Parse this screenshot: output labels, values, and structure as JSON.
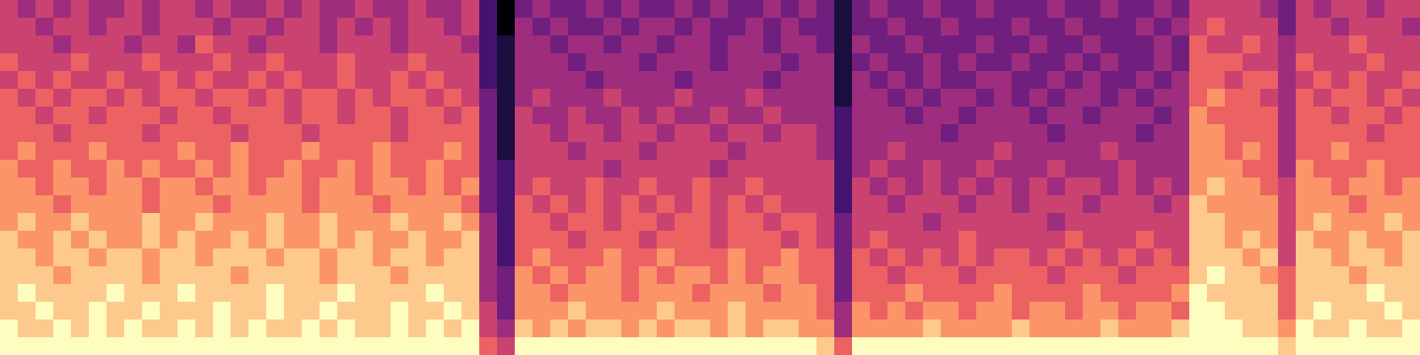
{
  "chart_data": {
    "type": "heatmap",
    "color": "magma",
    "tick_labels": false,
    "zlim": [
      0,
      9
    ],
    "cells": [
      [
        5,
        4,
        5,
        4,
        5,
        4,
        4,
        5,
        4,
        5,
        5,
        4,
        5,
        4,
        4,
        5,
        4,
        5,
        4,
        4,
        5,
        4,
        4,
        5,
        4,
        4,
        5,
        2,
        0,
        3,
        4,
        3,
        3,
        4,
        3,
        4,
        3,
        3,
        4,
        3,
        4,
        3,
        3,
        4,
        3,
        4,
        3,
        1,
        3,
        4,
        3,
        3,
        4,
        3,
        3,
        4,
        3,
        3,
        3,
        4,
        3,
        3,
        4,
        3,
        3,
        4,
        3,
        5,
        5,
        5,
        5,
        4,
        3,
        5,
        4,
        5,
        5,
        4,
        5,
        5
      ],
      [
        5,
        5,
        4,
        5,
        5,
        4,
        5,
        5,
        4,
        5,
        5,
        5,
        4,
        5,
        5,
        4,
        5,
        5,
        4,
        5,
        4,
        5,
        4,
        5,
        5,
        4,
        5,
        2,
        0,
        4,
        3,
        4,
        3,
        3,
        4,
        3,
        4,
        4,
        3,
        4,
        3,
        3,
        4,
        3,
        4,
        3,
        3,
        1,
        3,
        3,
        4,
        3,
        3,
        4,
        3,
        3,
        3,
        4,
        3,
        3,
        4,
        3,
        3,
        3,
        4,
        3,
        4,
        5,
        6,
        5,
        5,
        5,
        3,
        5,
        5,
        4,
        5,
        5,
        5,
        4
      ],
      [
        5,
        5,
        5,
        4,
        5,
        5,
        5,
        4,
        5,
        5,
        4,
        6,
        5,
        5,
        4,
        5,
        5,
        5,
        4,
        5,
        5,
        5,
        4,
        5,
        5,
        5,
        4,
        2,
        1,
        4,
        4,
        3,
        4,
        4,
        3,
        4,
        4,
        3,
        4,
        4,
        3,
        4,
        4,
        3,
        4,
        4,
        3,
        1,
        4,
        3,
        3,
        4,
        3,
        3,
        3,
        4,
        3,
        3,
        4,
        3,
        3,
        4,
        3,
        3,
        3,
        4,
        3,
        6,
        5,
        5,
        6,
        5,
        4,
        5,
        5,
        5,
        6,
        5,
        5,
        5
      ],
      [
        6,
        5,
        5,
        5,
        6,
        5,
        5,
        5,
        6,
        5,
        5,
        5,
        6,
        5,
        5,
        6,
        5,
        5,
        5,
        6,
        5,
        5,
        5,
        6,
        5,
        5,
        5,
        2,
        1,
        4,
        4,
        4,
        3,
        4,
        4,
        4,
        3,
        4,
        4,
        4,
        3,
        4,
        4,
        4,
        3,
        4,
        4,
        1,
        3,
        4,
        3,
        3,
        4,
        3,
        4,
        3,
        3,
        4,
        3,
        3,
        4,
        3,
        4,
        3,
        3,
        4,
        3,
        6,
        6,
        6,
        5,
        5,
        4,
        6,
        5,
        5,
        5,
        6,
        5,
        5
      ],
      [
        5,
        6,
        5,
        6,
        5,
        5,
        6,
        5,
        5,
        6,
        5,
        6,
        5,
        5,
        6,
        5,
        6,
        5,
        5,
        6,
        5,
        5,
        6,
        5,
        6,
        5,
        5,
        2,
        1,
        4,
        4,
        4,
        4,
        3,
        4,
        4,
        4,
        4,
        3,
        4,
        4,
        4,
        4,
        3,
        4,
        4,
        4,
        1,
        4,
        3,
        4,
        3,
        4,
        3,
        3,
        4,
        4,
        3,
        3,
        4,
        3,
        4,
        3,
        3,
        4,
        3,
        4,
        6,
        6,
        5,
        6,
        6,
        4,
        5,
        6,
        5,
        6,
        5,
        5,
        6
      ],
      [
        6,
        5,
        6,
        5,
        6,
        6,
        5,
        6,
        5,
        6,
        6,
        5,
        6,
        6,
        5,
        6,
        5,
        6,
        6,
        5,
        6,
        5,
        6,
        6,
        5,
        6,
        5,
        3,
        1,
        4,
        5,
        4,
        4,
        4,
        5,
        4,
        4,
        4,
        5,
        4,
        4,
        4,
        5,
        4,
        4,
        4,
        4,
        1,
        4,
        4,
        3,
        4,
        3,
        4,
        4,
        3,
        4,
        3,
        4,
        3,
        4,
        4,
        3,
        4,
        3,
        4,
        4,
        6,
        7,
        6,
        6,
        5,
        4,
        6,
        5,
        6,
        6,
        5,
        6,
        5
      ],
      [
        6,
        6,
        5,
        6,
        6,
        5,
        6,
        6,
        6,
        5,
        6,
        6,
        5,
        6,
        6,
        6,
        5,
        6,
        6,
        5,
        6,
        6,
        5,
        6,
        6,
        5,
        6,
        3,
        1,
        5,
        4,
        4,
        5,
        4,
        4,
        5,
        4,
        5,
        4,
        4,
        5,
        4,
        4,
        5,
        4,
        4,
        4,
        2,
        4,
        4,
        4,
        3,
        4,
        4,
        3,
        4,
        4,
        4,
        3,
        4,
        4,
        3,
        4,
        4,
        4,
        3,
        4,
        7,
        6,
        6,
        6,
        6,
        4,
        6,
        6,
        5,
        6,
        6,
        5,
        6
      ],
      [
        6,
        6,
        6,
        5,
        6,
        6,
        6,
        6,
        5,
        6,
        6,
        6,
        6,
        5,
        6,
        6,
        6,
        5,
        6,
        6,
        6,
        6,
        5,
        6,
        6,
        6,
        6,
        3,
        1,
        5,
        5,
        4,
        5,
        5,
        4,
        5,
        5,
        4,
        5,
        5,
        4,
        5,
        5,
        4,
        5,
        5,
        4,
        2,
        4,
        4,
        4,
        4,
        4,
        3,
        4,
        4,
        4,
        4,
        4,
        3,
        4,
        4,
        4,
        4,
        3,
        4,
        4,
        7,
        7,
        6,
        6,
        6,
        4,
        6,
        6,
        6,
        6,
        5,
        6,
        6
      ],
      [
        6,
        7,
        6,
        6,
        6,
        7,
        6,
        6,
        6,
        6,
        7,
        6,
        6,
        7,
        6,
        6,
        6,
        7,
        6,
        6,
        6,
        7,
        6,
        6,
        6,
        7,
        6,
        3,
        1,
        5,
        5,
        5,
        4,
        5,
        5,
        5,
        4,
        5,
        5,
        5,
        5,
        4,
        5,
        5,
        5,
        5,
        4,
        2,
        4,
        4,
        5,
        4,
        4,
        4,
        4,
        4,
        5,
        4,
        4,
        4,
        4,
        4,
        5,
        4,
        4,
        4,
        4,
        7,
        7,
        6,
        7,
        6,
        4,
        6,
        6,
        7,
        6,
        6,
        6,
        6
      ],
      [
        7,
        6,
        6,
        7,
        6,
        6,
        7,
        6,
        7,
        6,
        6,
        7,
        6,
        7,
        6,
        6,
        7,
        6,
        6,
        7,
        6,
        7,
        6,
        6,
        7,
        6,
        6,
        3,
        2,
        5,
        5,
        5,
        5,
        5,
        4,
        5,
        5,
        5,
        5,
        5,
        4,
        5,
        5,
        5,
        5,
        5,
        5,
        2,
        4,
        5,
        4,
        4,
        5,
        4,
        4,
        5,
        4,
        4,
        4,
        5,
        4,
        4,
        4,
        5,
        4,
        4,
        4,
        7,
        7,
        7,
        6,
        6,
        4,
        7,
        6,
        6,
        6,
        7,
        6,
        6
      ],
      [
        7,
        7,
        6,
        7,
        7,
        6,
        7,
        7,
        6,
        7,
        7,
        6,
        7,
        7,
        6,
        7,
        7,
        6,
        7,
        7,
        6,
        7,
        7,
        6,
        7,
        6,
        7,
        3,
        2,
        5,
        6,
        5,
        5,
        6,
        5,
        5,
        6,
        5,
        5,
        6,
        5,
        5,
        6,
        5,
        5,
        5,
        5,
        2,
        5,
        4,
        5,
        4,
        5,
        4,
        5,
        4,
        5,
        4,
        5,
        4,
        5,
        5,
        4,
        5,
        4,
        5,
        4,
        7,
        8,
        7,
        7,
        6,
        5,
        7,
        7,
        6,
        7,
        7,
        6,
        7
      ],
      [
        7,
        7,
        7,
        6,
        7,
        7,
        7,
        7,
        6,
        7,
        7,
        7,
        6,
        7,
        7,
        7,
        7,
        6,
        7,
        7,
        7,
        6,
        7,
        7,
        7,
        7,
        6,
        3,
        2,
        6,
        5,
        6,
        5,
        6,
        5,
        6,
        5,
        6,
        5,
        6,
        5,
        6,
        5,
        6,
        5,
        5,
        5,
        2,
        5,
        5,
        4,
        5,
        5,
        5,
        4,
        5,
        5,
        4,
        5,
        5,
        5,
        4,
        5,
        5,
        5,
        4,
        5,
        8,
        7,
        7,
        7,
        7,
        5,
        7,
        7,
        7,
        6,
        7,
        7,
        7
      ],
      [
        7,
        8,
        7,
        7,
        8,
        7,
        7,
        7,
        8,
        7,
        7,
        8,
        7,
        7,
        7,
        8,
        7,
        7,
        8,
        7,
        7,
        7,
        8,
        7,
        7,
        8,
        7,
        4,
        2,
        6,
        6,
        5,
        6,
        6,
        5,
        6,
        6,
        5,
        6,
        6,
        5,
        6,
        6,
        5,
        6,
        6,
        5,
        3,
        5,
        5,
        5,
        5,
        4,
        5,
        5,
        5,
        5,
        5,
        5,
        4,
        5,
        5,
        5,
        5,
        5,
        5,
        5,
        8,
        8,
        7,
        7,
        7,
        5,
        7,
        8,
        7,
        7,
        7,
        8,
        7
      ],
      [
        8,
        7,
        7,
        8,
        7,
        8,
        7,
        7,
        8,
        7,
        8,
        7,
        7,
        8,
        7,
        8,
        7,
        7,
        8,
        7,
        8,
        7,
        7,
        8,
        7,
        7,
        8,
        4,
        2,
        6,
        6,
        6,
        5,
        6,
        6,
        6,
        5,
        6,
        6,
        6,
        5,
        6,
        6,
        6,
        5,
        6,
        5,
        3,
        5,
        6,
        5,
        5,
        5,
        5,
        6,
        5,
        5,
        5,
        5,
        5,
        6,
        5,
        5,
        5,
        6,
        5,
        5,
        8,
        8,
        7,
        8,
        7,
        5,
        8,
        7,
        7,
        8,
        7,
        7,
        8
      ],
      [
        8,
        8,
        7,
        8,
        8,
        7,
        8,
        8,
        7,
        8,
        8,
        7,
        8,
        8,
        8,
        7,
        8,
        8,
        7,
        8,
        8,
        7,
        8,
        8,
        7,
        8,
        8,
        4,
        2,
        6,
        7,
        6,
        6,
        6,
        7,
        6,
        6,
        7,
        6,
        6,
        6,
        7,
        6,
        6,
        7,
        6,
        6,
        3,
        6,
        5,
        6,
        5,
        6,
        5,
        6,
        5,
        6,
        6,
        5,
        6,
        5,
        6,
        5,
        6,
        5,
        6,
        5,
        8,
        8,
        8,
        7,
        8,
        5,
        8,
        8,
        7,
        8,
        8,
        7,
        8
      ],
      [
        8,
        8,
        8,
        7,
        8,
        8,
        8,
        8,
        7,
        8,
        8,
        8,
        8,
        7,
        8,
        8,
        8,
        8,
        7,
        8,
        8,
        8,
        7,
        8,
        8,
        8,
        8,
        4,
        3,
        7,
        6,
        7,
        6,
        7,
        7,
        6,
        7,
        6,
        7,
        7,
        6,
        7,
        6,
        7,
        7,
        6,
        6,
        3,
        6,
        6,
        5,
        6,
        6,
        6,
        5,
        6,
        6,
        6,
        6,
        5,
        6,
        6,
        6,
        5,
        6,
        6,
        6,
        8,
        9,
        8,
        8,
        7,
        6,
        8,
        8,
        8,
        7,
        8,
        8,
        8
      ],
      [
        8,
        9,
        8,
        8,
        8,
        8,
        9,
        8,
        8,
        8,
        9,
        8,
        8,
        8,
        8,
        9,
        8,
        8,
        8,
        9,
        8,
        8,
        8,
        8,
        9,
        8,
        8,
        4,
        3,
        7,
        7,
        6,
        7,
        7,
        7,
        6,
        7,
        7,
        7,
        6,
        7,
        7,
        7,
        6,
        7,
        7,
        6,
        3,
        6,
        6,
        6,
        7,
        6,
        6,
        6,
        6,
        7,
        6,
        6,
        6,
        6,
        7,
        6,
        6,
        6,
        6,
        7,
        9,
        8,
        8,
        8,
        8,
        6,
        8,
        8,
        8,
        8,
        9,
        8,
        8
      ],
      [
        8,
        8,
        9,
        8,
        8,
        9,
        8,
        8,
        9,
        8,
        8,
        8,
        9,
        8,
        8,
        9,
        8,
        8,
        9,
        8,
        8,
        8,
        9,
        8,
        8,
        9,
        8,
        5,
        3,
        7,
        7,
        7,
        8,
        7,
        7,
        7,
        7,
        8,
        7,
        7,
        7,
        8,
        7,
        7,
        7,
        7,
        6,
        4,
        7,
        6,
        7,
        6,
        7,
        7,
        6,
        7,
        7,
        6,
        7,
        7,
        6,
        7,
        7,
        6,
        7,
        7,
        6,
        9,
        9,
        8,
        8,
        8,
        6,
        8,
        9,
        8,
        8,
        8,
        9,
        8
      ],
      [
        9,
        8,
        8,
        9,
        8,
        9,
        8,
        9,
        8,
        8,
        9,
        8,
        9,
        8,
        9,
        8,
        8,
        9,
        8,
        9,
        8,
        8,
        9,
        8,
        9,
        8,
        9,
        5,
        4,
        8,
        7,
        8,
        7,
        8,
        8,
        7,
        8,
        7,
        8,
        8,
        7,
        8,
        7,
        8,
        8,
        7,
        7,
        4,
        7,
        7,
        7,
        7,
        8,
        7,
        7,
        7,
        7,
        8,
        7,
        7,
        7,
        7,
        8,
        7,
        7,
        7,
        8,
        9,
        9,
        9,
        8,
        8,
        7,
        9,
        8,
        8,
        9,
        8,
        8,
        9
      ],
      [
        9,
        9,
        9,
        9,
        9,
        9,
        9,
        9,
        9,
        9,
        9,
        9,
        9,
        9,
        9,
        9,
        9,
        9,
        9,
        9,
        9,
        9,
        9,
        9,
        9,
        9,
        9,
        6,
        5,
        9,
        9,
        9,
        9,
        9,
        9,
        9,
        9,
        9,
        9,
        9,
        9,
        9,
        9,
        9,
        9,
        9,
        8,
        6,
        9,
        9,
        9,
        9,
        9,
        9,
        9,
        9,
        9,
        9,
        9,
        9,
        9,
        9,
        9,
        9,
        9,
        9,
        9,
        9,
        9,
        9,
        9,
        9,
        8,
        9,
        9,
        9,
        9,
        9,
        9,
        9
      ]
    ]
  }
}
